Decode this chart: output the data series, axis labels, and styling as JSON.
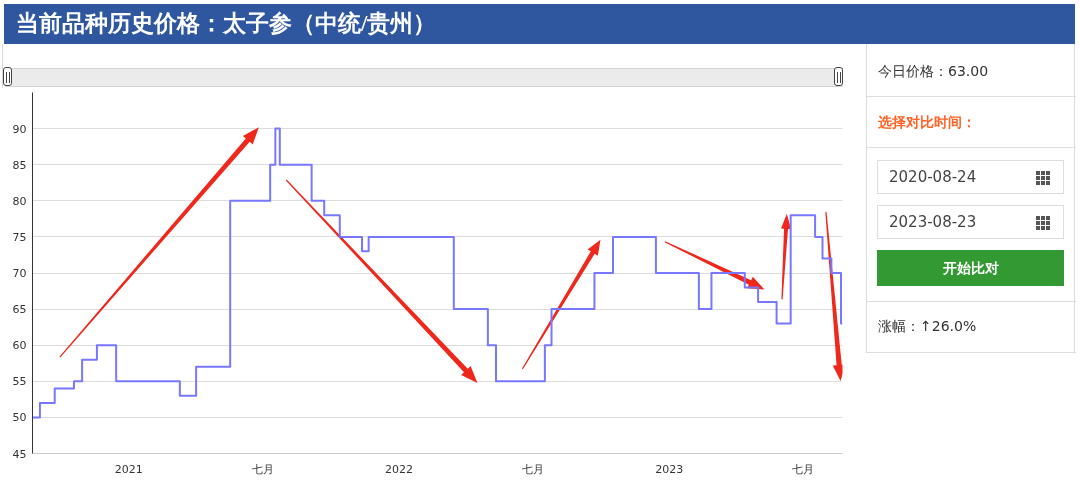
{
  "chart_data": [
    {
      "type": "step",
      "title": "当前品种历史价格：太子参（中统/贵州）",
      "x": [
        "2020-08-24",
        "2020-09-03",
        "2020-09-23",
        "2020-10-19",
        "2020-10-30",
        "2020-11-19",
        "2020-12-15",
        "2021-03-11",
        "2021-04-02",
        "2021-05-18",
        "2021-07-11",
        "2021-07-18",
        "2021-07-24",
        "2021-09-05",
        "2021-09-22",
        "2021-10-13",
        "2021-11-12",
        "2021-11-21",
        "2022-03-16",
        "2022-05-01",
        "2022-05-12",
        "2022-07-17",
        "2022-07-26",
        "2022-09-22",
        "2022-10-17",
        "2022-12-14",
        "2023-02-10",
        "2023-02-27",
        "2023-04-13",
        "2023-05-01",
        "2023-05-26",
        "2023-06-14",
        "2023-07-17",
        "2023-07-27",
        "2023-08-08",
        "2023-08-21",
        "2023-08-23"
      ],
      "series": [
        {
          "color": "#7777ff",
          "values": [
            50,
            52,
            54,
            55,
            58,
            60,
            55,
            53,
            57,
            80,
            85,
            90,
            85,
            80,
            78,
            75,
            73,
            75,
            65,
            60,
            55,
            60,
            65,
            70,
            75,
            70,
            65,
            70,
            68,
            66,
            63,
            78,
            75,
            72,
            70,
            63,
            63
          ]
        }
      ],
      "xlim": [
        "2020-08-24",
        "2023-08-23"
      ],
      "xticks": [
        {
          "value": "2021-01-01",
          "label": "2021"
        },
        {
          "value": "2021-07-01",
          "label": "七月"
        },
        {
          "value": "2022-01-01",
          "label": "2022"
        },
        {
          "value": "2022-07-01",
          "label": "七月"
        },
        {
          "value": "2023-01-01",
          "label": "2023"
        },
        {
          "value": "2023-07-01",
          "label": "七月"
        }
      ],
      "ylim": [
        45,
        95
      ],
      "yticks": [
        45,
        50,
        55,
        60,
        65,
        70,
        75,
        80,
        85,
        90
      ],
      "grid": "y"
    },
    {
      "type": "other",
      "annotations": [
        "今日价格：63.00",
        "选择对比时间：",
        "2020-08-24",
        "2023-08-23",
        "开始比对",
        "涨幅：↑26.0%"
      ]
    }
  ]
}
